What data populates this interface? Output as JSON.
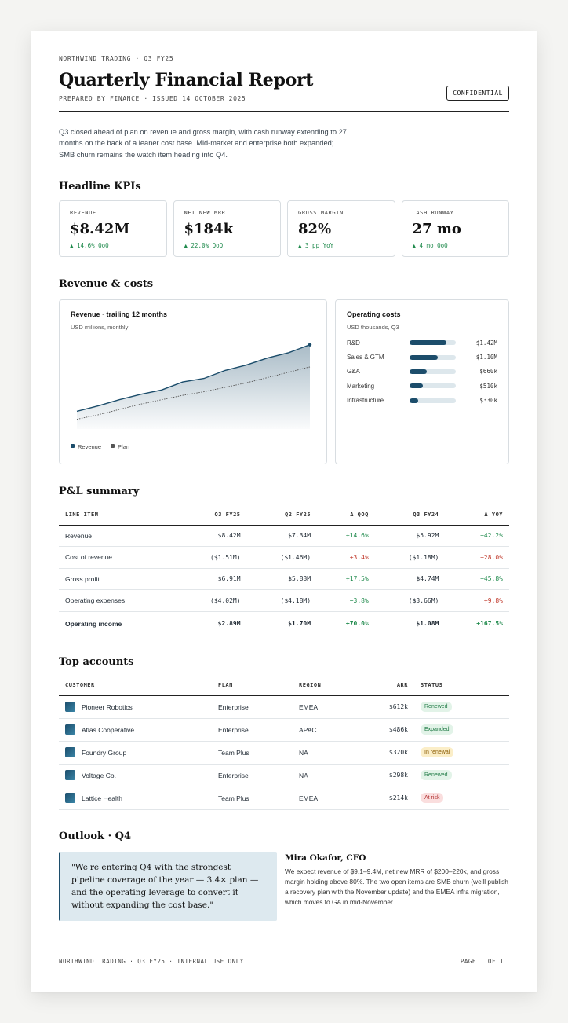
{
  "header": {
    "kicker": "NORTHWIND TRADING · Q3 FY25",
    "title": "Quarterly Financial Report",
    "prepared": "PREPARED BY FINANCE · ISSUED 14 OCTOBER 2025",
    "badge": "CONFIDENTIAL"
  },
  "summary": "Q3 closed ahead of plan on revenue and gross margin, with cash runway extending to 27 months on the back of a leaner cost base. Mid-market and enterprise both expanded; SMB churn remains the watch item heading into Q4.",
  "kpi_section": {
    "title": "Headline KPIs",
    "items": [
      {
        "label": "REVENUE",
        "value": "$8.42M",
        "delta": "▲ 14.6% QoQ"
      },
      {
        "label": "NET NEW MRR",
        "value": "$184k",
        "delta": "▲ 22.0% QoQ"
      },
      {
        "label": "GROSS MARGIN",
        "value": "82%",
        "delta": "▲ 3 pp YoY"
      },
      {
        "label": "CASH RUNWAY",
        "value": "27 mo",
        "delta": "▲ 4 mo QoQ"
      }
    ]
  },
  "revenue_section": {
    "title": "Revenue & costs"
  },
  "chart_data": [
    {
      "type": "area",
      "title": "Revenue · trailing 12 months",
      "subtitle": "USD millions, monthly",
      "x": [
        1,
        2,
        3,
        4,
        5,
        6,
        7,
        8,
        9,
        10,
        11,
        12
      ],
      "ylim": [
        0,
        10
      ],
      "series": [
        {
          "name": "Revenue",
          "values": [
            2.0,
            2.6,
            3.3,
            3.9,
            4.4,
            5.3,
            5.7,
            6.6,
            7.2,
            8.0,
            8.6,
            9.5
          ]
        },
        {
          "name": "Plan",
          "values": [
            1.1,
            1.6,
            2.2,
            2.8,
            3.3,
            3.8,
            4.2,
            4.7,
            5.2,
            5.8,
            6.4,
            7.0
          ]
        }
      ],
      "grid": false,
      "legend": "bottom-left",
      "colors": {
        "Revenue": "#1c4d6b",
        "Plan": "#555555"
      }
    },
    {
      "type": "bar",
      "title": "Operating costs",
      "subtitle": "USD thousands, Q3",
      "categories": [
        "R&D",
        "Sales & GTM",
        "G&A",
        "Marketing",
        "Infrastructure"
      ],
      "values": [
        1420,
        1100,
        660,
        510,
        330
      ],
      "value_labels": [
        "$1.42M",
        "$1.10M",
        "$660k",
        "$510k",
        "$330k"
      ],
      "xlim": [
        0,
        1800
      ]
    }
  ],
  "pl": {
    "title": "P&L summary",
    "columns": [
      "LINE ITEM",
      "Q3 FY25",
      "Q2 FY25",
      "Δ QOQ",
      "Q3 FY24",
      "Δ YOY"
    ],
    "rows": [
      {
        "item": "Revenue",
        "q3": "$8.42M",
        "q2": "$7.34M",
        "dqoq": "+14.6%",
        "q3py": "$5.92M",
        "dyoy": "+42.2%",
        "qoq_dir": "pos",
        "yoy_dir": "pos"
      },
      {
        "item": "Cost of revenue",
        "q3": "($1.51M)",
        "q2": "($1.46M)",
        "dqoq": "+3.4%",
        "q3py": "($1.18M)",
        "dyoy": "+28.0%",
        "qoq_dir": "neg",
        "yoy_dir": "neg"
      },
      {
        "item": "Gross profit",
        "q3": "$6.91M",
        "q2": "$5.88M",
        "dqoq": "+17.5%",
        "q3py": "$4.74M",
        "dyoy": "+45.8%",
        "qoq_dir": "pos",
        "yoy_dir": "pos"
      },
      {
        "item": "Operating expenses",
        "q3": "($4.02M)",
        "q2": "($4.18M)",
        "dqoq": "−3.8%",
        "q3py": "($3.66M)",
        "dyoy": "+9.8%",
        "qoq_dir": "pos",
        "yoy_dir": "neg"
      },
      {
        "item": "Operating income",
        "q3": "$2.89M",
        "q2": "$1.70M",
        "dqoq": "+70.0%",
        "q3py": "$1.08M",
        "dyoy": "+167.5%",
        "qoq_dir": "pos",
        "yoy_dir": "pos"
      }
    ]
  },
  "accounts": {
    "title": "Top accounts",
    "columns": [
      "CUSTOMER",
      "PLAN",
      "REGION",
      "ARR",
      "STATUS"
    ],
    "rows": [
      {
        "customer": "Pioneer Robotics",
        "plan": "Enterprise",
        "region": "EMEA",
        "arr": "$612k",
        "status": "Renewed",
        "tone": "green"
      },
      {
        "customer": "Atlas Cooperative",
        "plan": "Enterprise",
        "region": "APAC",
        "arr": "$486k",
        "status": "Expanded",
        "tone": "green"
      },
      {
        "customer": "Foundry Group",
        "plan": "Team Plus",
        "region": "NA",
        "arr": "$320k",
        "status": "In renewal",
        "tone": "amber"
      },
      {
        "customer": "Voltage Co.",
        "plan": "Enterprise",
        "region": "NA",
        "arr": "$298k",
        "status": "Renewed",
        "tone": "green"
      },
      {
        "customer": "Lattice Health",
        "plan": "Team Plus",
        "region": "EMEA",
        "arr": "$214k",
        "status": "At risk",
        "tone": "red"
      }
    ]
  },
  "outlook": {
    "title": "Outlook · Q4",
    "quote": "\"We're entering Q4 with the strongest pipeline coverage of the year — 3.4× plan — and the operating leverage to convert it without expanding the cost base.\"",
    "cfo_name": "Mira Okafor, CFO",
    "cfo_text": "We expect revenue of $9.1–9.4M, net new MRR of $200–220k, and gross margin holding above 80%. The two open items are SMB churn (we'll publish a recovery plan with the November update) and the EMEA infra migration, which moves to GA in mid-November."
  },
  "footer": {
    "left": "NORTHWIND TRADING · Q3 FY25 · INTERNAL USE ONLY",
    "right": "PAGE 1 OF 1"
  },
  "colors": {
    "accent": "#1c4d6b",
    "positive": "#1f8a4c",
    "negative": "#c0392b"
  }
}
